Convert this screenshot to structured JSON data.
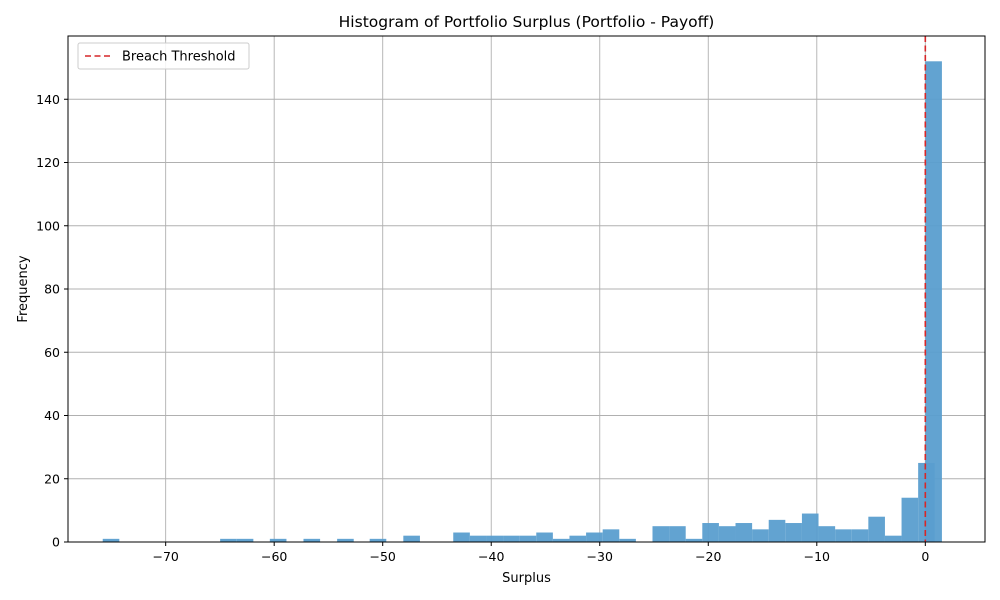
{
  "chart_data": {
    "type": "bar",
    "title": "Histogram of Portfolio Surplus (Portfolio - Payoff)",
    "xlabel": "Surplus",
    "ylabel": "Frequency",
    "xlim": [
      -79,
      5.5
    ],
    "ylim": [
      0,
      160
    ],
    "x_ticks": [
      -70,
      -60,
      -50,
      -40,
      -30,
      -20,
      -10,
      0
    ],
    "x_tick_labels": [
      "−70",
      "−60",
      "−50",
      "−40",
      "−30",
      "−20",
      "−10",
      "0"
    ],
    "y_ticks": [
      0,
      20,
      40,
      60,
      80,
      100,
      120,
      140
    ],
    "grid": true,
    "bar_color": "#5a9ecf",
    "bin_width": 1.53,
    "bins": [
      {
        "x0": -75.8,
        "count": 1
      },
      {
        "x0": -64.98,
        "count": 1
      },
      {
        "x0": -63.45,
        "count": 1
      },
      {
        "x0": -60.4,
        "count": 1
      },
      {
        "x0": -57.3,
        "count": 1
      },
      {
        "x0": -54.2,
        "count": 1
      },
      {
        "x0": -51.2,
        "count": 1
      },
      {
        "x0": -48.1,
        "count": 2
      },
      {
        "x0": -43.5,
        "count": 3
      },
      {
        "x0": -41.97,
        "count": 2
      },
      {
        "x0": -40.44,
        "count": 2
      },
      {
        "x0": -38.91,
        "count": 2
      },
      {
        "x0": -37.38,
        "count": 2
      },
      {
        "x0": -35.85,
        "count": 3
      },
      {
        "x0": -34.32,
        "count": 1
      },
      {
        "x0": -32.79,
        "count": 2
      },
      {
        "x0": -31.26,
        "count": 3
      },
      {
        "x0": -29.73,
        "count": 4
      },
      {
        "x0": -28.2,
        "count": 1
      },
      {
        "x0": -25.14,
        "count": 5
      },
      {
        "x0": -23.61,
        "count": 5
      },
      {
        "x0": -22.08,
        "count": 1
      },
      {
        "x0": -20.55,
        "count": 6
      },
      {
        "x0": -19.02,
        "count": 5
      },
      {
        "x0": -17.49,
        "count": 6
      },
      {
        "x0": -15.96,
        "count": 4
      },
      {
        "x0": -14.43,
        "count": 7
      },
      {
        "x0": -12.9,
        "count": 6
      },
      {
        "x0": -11.37,
        "count": 9
      },
      {
        "x0": -9.84,
        "count": 5
      },
      {
        "x0": -8.31,
        "count": 4
      },
      {
        "x0": -6.78,
        "count": 4
      },
      {
        "x0": -5.25,
        "count": 8
      },
      {
        "x0": -3.72,
        "count": 2
      },
      {
        "x0": -2.19,
        "count": 14
      },
      {
        "x0": -0.66,
        "count": 25
      },
      {
        "x0": 0.0,
        "count": 152
      }
    ],
    "threshold": {
      "x": 0,
      "label": "Breach Threshold",
      "color": "#d62728"
    },
    "legend_position": "top-left"
  }
}
